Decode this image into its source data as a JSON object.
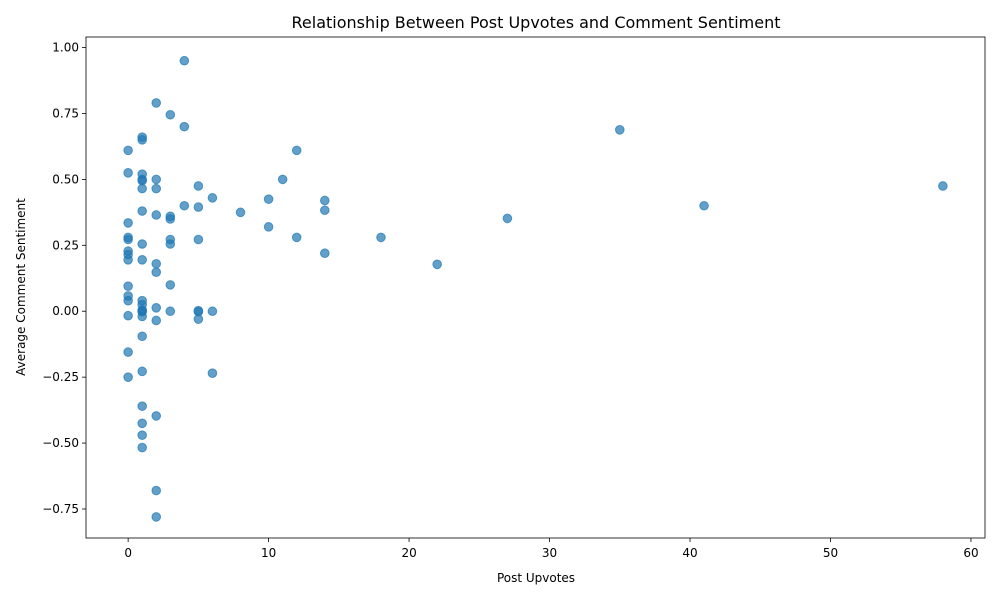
{
  "chart_data": {
    "type": "scatter",
    "title": "Relationship Between Post Upvotes and Comment Sentiment",
    "xlabel": "Post Upvotes",
    "ylabel": "Average Comment Sentiment",
    "xlim": [
      -3,
      61
    ],
    "ylim": [
      -0.86,
      1.04
    ],
    "xticks": [
      0,
      10,
      20,
      30,
      40,
      50,
      60
    ],
    "yticks": [
      -0.75,
      -0.5,
      -0.25,
      0.0,
      0.25,
      0.5,
      0.75,
      1.0
    ],
    "ytick_labels": [
      "−0.75",
      "−0.50",
      "−0.25",
      "0.00",
      "0.25",
      "0.50",
      "0.75",
      "1.00"
    ],
    "grid": false,
    "color": "#1f77b4",
    "points": [
      {
        "x": 0,
        "y": 0.61
      },
      {
        "x": 0,
        "y": 0.525
      },
      {
        "x": 0,
        "y": 0.335
      },
      {
        "x": 0,
        "y": 0.28
      },
      {
        "x": 0,
        "y": 0.272
      },
      {
        "x": 0,
        "y": 0.228
      },
      {
        "x": 0,
        "y": 0.215
      },
      {
        "x": 0,
        "y": 0.195
      },
      {
        "x": 0,
        "y": 0.095
      },
      {
        "x": 0,
        "y": 0.058
      },
      {
        "x": 0,
        "y": 0.04
      },
      {
        "x": 0,
        "y": -0.017
      },
      {
        "x": 0,
        "y": -0.155
      },
      {
        "x": 0,
        "y": -0.25
      },
      {
        "x": 1,
        "y": 0.66
      },
      {
        "x": 1,
        "y": 0.65
      },
      {
        "x": 1,
        "y": 0.52
      },
      {
        "x": 1,
        "y": 0.5
      },
      {
        "x": 1,
        "y": 0.495
      },
      {
        "x": 1,
        "y": 0.465
      },
      {
        "x": 1,
        "y": 0.38
      },
      {
        "x": 1,
        "y": 0.255
      },
      {
        "x": 1,
        "y": 0.195
      },
      {
        "x": 1,
        "y": 0.04
      },
      {
        "x": 1,
        "y": 0.025
      },
      {
        "x": 1,
        "y": 0.005
      },
      {
        "x": 1,
        "y": 0.0
      },
      {
        "x": 1,
        "y": -0.002
      },
      {
        "x": 1,
        "y": -0.02
      },
      {
        "x": 1,
        "y": -0.095
      },
      {
        "x": 1,
        "y": -0.228
      },
      {
        "x": 1,
        "y": -0.36
      },
      {
        "x": 1,
        "y": -0.425
      },
      {
        "x": 1,
        "y": -0.47
      },
      {
        "x": 1,
        "y": -0.517
      },
      {
        "x": 2,
        "y": 0.79
      },
      {
        "x": 2,
        "y": 0.5
      },
      {
        "x": 2,
        "y": 0.465
      },
      {
        "x": 2,
        "y": 0.365
      },
      {
        "x": 2,
        "y": 0.18
      },
      {
        "x": 2,
        "y": 0.148
      },
      {
        "x": 2,
        "y": 0.013
      },
      {
        "x": 2,
        "y": -0.035
      },
      {
        "x": 2,
        "y": -0.397
      },
      {
        "x": 2,
        "y": -0.68
      },
      {
        "x": 2,
        "y": -0.78
      },
      {
        "x": 3,
        "y": 0.745
      },
      {
        "x": 3,
        "y": 0.36
      },
      {
        "x": 3,
        "y": 0.35
      },
      {
        "x": 3,
        "y": 0.272
      },
      {
        "x": 3,
        "y": 0.255
      },
      {
        "x": 3,
        "y": 0.1
      },
      {
        "x": 3,
        "y": 0.0
      },
      {
        "x": 4,
        "y": 0.95
      },
      {
        "x": 4,
        "y": 0.7
      },
      {
        "x": 4,
        "y": 0.4
      },
      {
        "x": 5,
        "y": 0.475
      },
      {
        "x": 5,
        "y": 0.395
      },
      {
        "x": 5,
        "y": 0.272
      },
      {
        "x": 5,
        "y": 0.002
      },
      {
        "x": 5,
        "y": -0.002
      },
      {
        "x": 5,
        "y": -0.03
      },
      {
        "x": 6,
        "y": 0.43
      },
      {
        "x": 6,
        "y": 0.0
      },
      {
        "x": 6,
        "y": -0.235
      },
      {
        "x": 8,
        "y": 0.375
      },
      {
        "x": 10,
        "y": 0.425
      },
      {
        "x": 10,
        "y": 0.32
      },
      {
        "x": 11,
        "y": 0.5
      },
      {
        "x": 12,
        "y": 0.61
      },
      {
        "x": 12,
        "y": 0.28
      },
      {
        "x": 14,
        "y": 0.42
      },
      {
        "x": 14,
        "y": 0.383
      },
      {
        "x": 14,
        "y": 0.22
      },
      {
        "x": 18,
        "y": 0.28
      },
      {
        "x": 22,
        "y": 0.178
      },
      {
        "x": 27,
        "y": 0.352
      },
      {
        "x": 35,
        "y": 0.688
      },
      {
        "x": 41,
        "y": 0.4
      },
      {
        "x": 58,
        "y": 0.475
      }
    ]
  }
}
